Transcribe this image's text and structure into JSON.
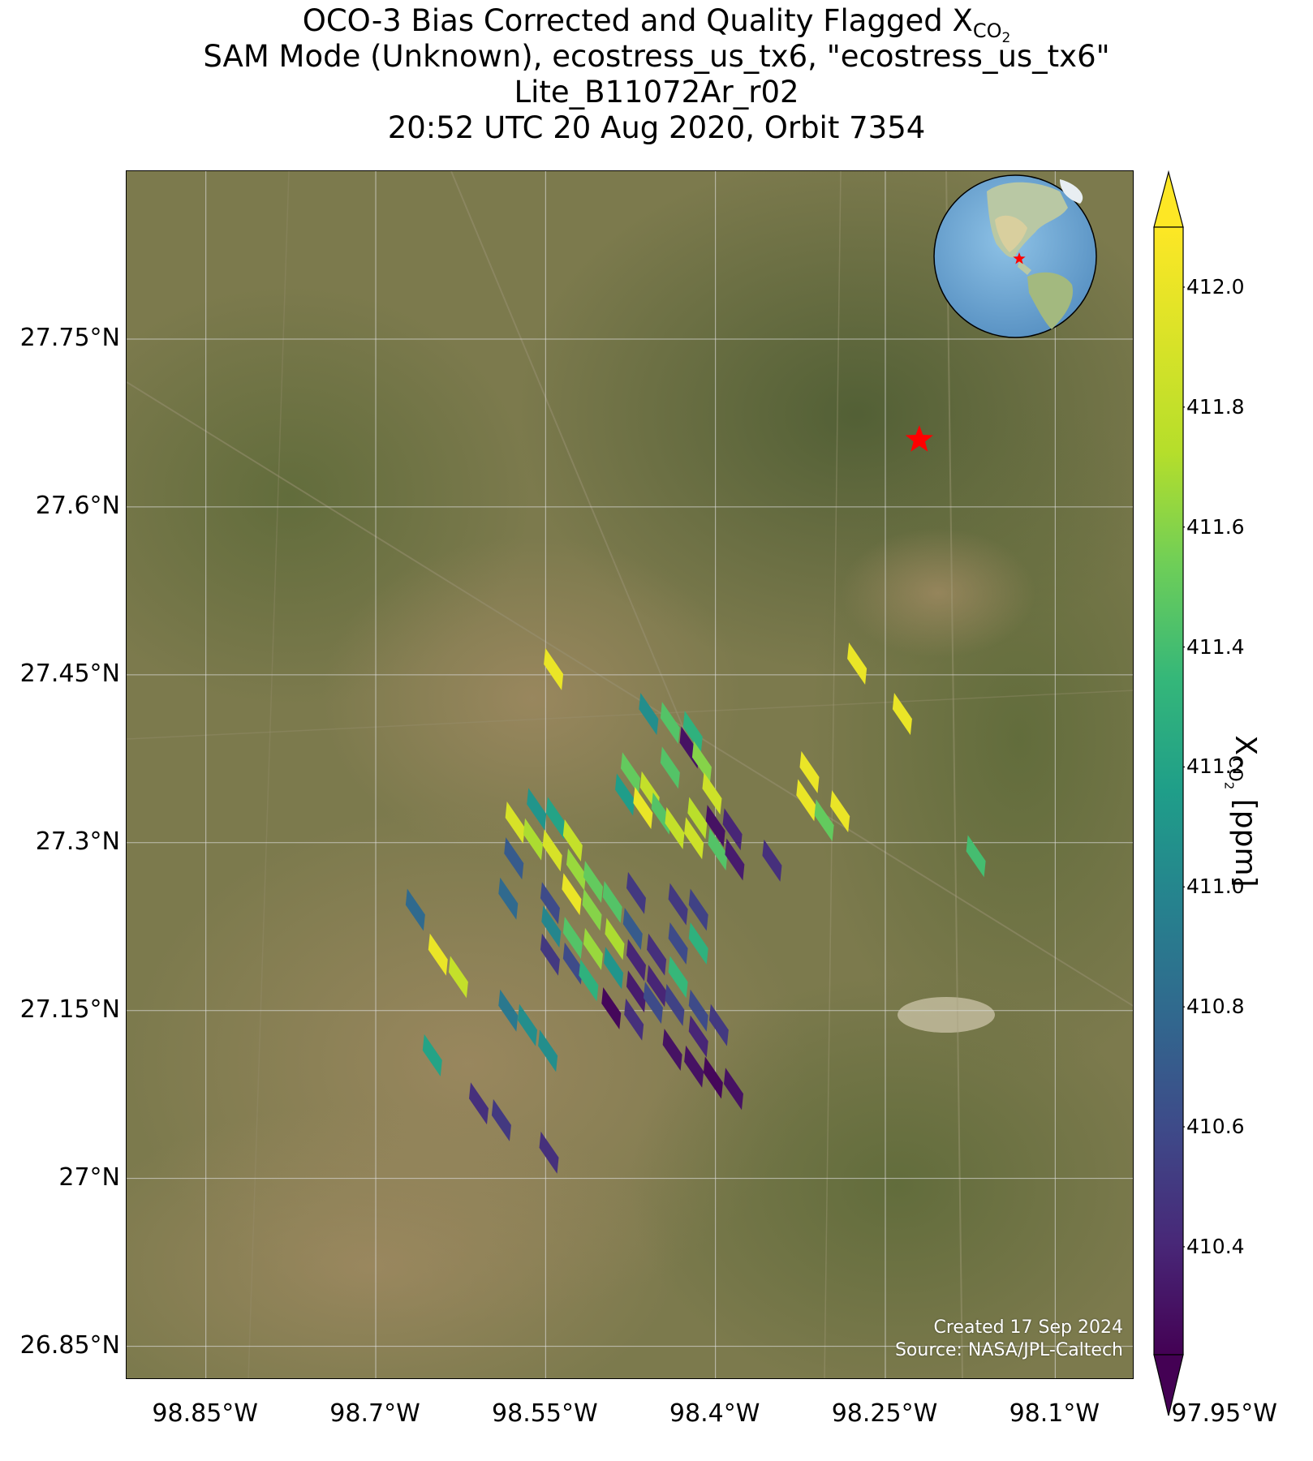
{
  "title": {
    "line1_prefix": "OCO-3 Bias Corrected and Quality Flagged X",
    "line1_sub": "CO",
    "line1_subsub": "2",
    "line2": "SAM Mode (Unknown), ecostress_us_tx6, \"ecostress_us_tx6\"",
    "line3": "Lite_B11072Ar_r02",
    "line4": "20:52 UTC 20 Aug 2020, Orbit 7354"
  },
  "map": {
    "lon_range": [
      -98.92,
      -98.03
    ],
    "lat_range": [
      26.82,
      27.9
    ],
    "lat_ticks": [
      "27.75°N",
      "27.6°N",
      "27.45°N",
      "27.3°N",
      "27.15°N",
      "27°N",
      "26.85°N"
    ],
    "lat_tick_values": [
      27.75,
      27.6,
      27.45,
      27.3,
      27.15,
      27.0,
      26.85
    ],
    "lon_ticks": [
      "98.85°W",
      "98.7°W",
      "98.55°W",
      "98.4°W",
      "98.25°W",
      "98.1°W",
      "97.95°W"
    ],
    "lon_tick_values": [
      -98.85,
      -98.7,
      -98.55,
      -98.4,
      -98.25,
      -98.1,
      -97.95
    ],
    "grid": true,
    "target_marker": {
      "lon": -98.22,
      "lat": 27.66,
      "symbol": "star",
      "color": "#ff0000"
    },
    "inset_globe": {
      "placement": "top-right",
      "marker_color": "#ff0000"
    },
    "credit_line1": "Created 17 Sep 2024",
    "credit_line2": "Source: NASA/JPL-Caltech"
  },
  "colorbar": {
    "colormap": "viridis",
    "vmin": 410.22,
    "vmax": 412.1,
    "ticks": [
      "412.0",
      "411.8",
      "411.6",
      "411.4",
      "411.2",
      "411.0",
      "410.8",
      "410.6",
      "410.4"
    ],
    "tick_values": [
      412.0,
      411.8,
      411.6,
      411.4,
      411.2,
      411.0,
      410.8,
      410.6,
      410.4
    ],
    "extend": "both",
    "label_prefix": "X",
    "label_sub": "CO",
    "label_subsub": "2",
    "label_suffix": " [ppm]"
  },
  "soundings": [
    {
      "lon": -98.543,
      "lat": 27.455,
      "xco2": 412.0
    },
    {
      "lon": -98.459,
      "lat": 27.415,
      "xco2": 411.05
    },
    {
      "lon": -98.44,
      "lat": 27.407,
      "xco2": 411.45
    },
    {
      "lon": -98.42,
      "lat": 27.399,
      "xco2": 411.3
    },
    {
      "lon": -98.423,
      "lat": 27.385,
      "xco2": 410.3
    },
    {
      "lon": -98.44,
      "lat": 27.367,
      "xco2": 411.45
    },
    {
      "lon": -98.412,
      "lat": 27.372,
      "xco2": 411.6
    },
    {
      "lon": -98.475,
      "lat": 27.362,
      "xco2": 411.5
    },
    {
      "lon": -98.458,
      "lat": 27.345,
      "xco2": 411.8
    },
    {
      "lon": -98.48,
      "lat": 27.343,
      "xco2": 411.15
    },
    {
      "lon": -98.464,
      "lat": 27.331,
      "xco2": 412.0
    },
    {
      "lon": -98.448,
      "lat": 27.326,
      "xco2": 411.45
    },
    {
      "lon": -98.403,
      "lat": 27.344,
      "xco2": 411.85
    },
    {
      "lon": -98.416,
      "lat": 27.322,
      "xco2": 411.75
    },
    {
      "lon": -98.436,
      "lat": 27.313,
      "xco2": 411.8
    },
    {
      "lon": -98.419,
      "lat": 27.304,
      "xco2": 411.85
    },
    {
      "lon": -98.4,
      "lat": 27.315,
      "xco2": 410.3
    },
    {
      "lon": -98.385,
      "lat": 27.312,
      "xco2": 410.4
    },
    {
      "lon": -98.398,
      "lat": 27.294,
      "xco2": 411.45
    },
    {
      "lon": -98.383,
      "lat": 27.285,
      "xco2": 410.35
    },
    {
      "lon": -98.577,
      "lat": 27.318,
      "xco2": 411.9
    },
    {
      "lon": -98.558,
      "lat": 27.33,
      "xco2": 411.1
    },
    {
      "lon": -98.541,
      "lat": 27.322,
      "xco2": 411.2
    },
    {
      "lon": -98.561,
      "lat": 27.303,
      "xco2": 411.7
    },
    {
      "lon": -98.544,
      "lat": 27.293,
      "xco2": 411.9
    },
    {
      "lon": -98.526,
      "lat": 27.302,
      "xco2": 411.8
    },
    {
      "lon": -98.578,
      "lat": 27.286,
      "xco2": 410.7
    },
    {
      "lon": -98.523,
      "lat": 27.276,
      "xco2": 411.65
    },
    {
      "lon": -98.508,
      "lat": 27.265,
      "xco2": 411.5
    },
    {
      "lon": -98.527,
      "lat": 27.254,
      "xco2": 412.0
    },
    {
      "lon": -98.546,
      "lat": 27.246,
      "xco2": 410.6
    },
    {
      "lon": -98.509,
      "lat": 27.24,
      "xco2": 411.6
    },
    {
      "lon": -98.491,
      "lat": 27.247,
      "xco2": 411.45
    },
    {
      "lon": -98.47,
      "lat": 27.255,
      "xco2": 410.5
    },
    {
      "lon": -98.545,
      "lat": 27.225,
      "xco2": 411.0
    },
    {
      "lon": -98.526,
      "lat": 27.215,
      "xco2": 411.45
    },
    {
      "lon": -98.508,
      "lat": 27.205,
      "xco2": 411.65
    },
    {
      "lon": -98.489,
      "lat": 27.214,
      "xco2": 411.7
    },
    {
      "lon": -98.473,
      "lat": 27.223,
      "xco2": 410.7
    },
    {
      "lon": -98.433,
      "lat": 27.245,
      "xco2": 410.5
    },
    {
      "lon": -98.415,
      "lat": 27.24,
      "xco2": 410.55
    },
    {
      "lon": -98.583,
      "lat": 27.25,
      "xco2": 410.8
    },
    {
      "lon": -98.546,
      "lat": 27.2,
      "xco2": 410.5
    },
    {
      "lon": -98.526,
      "lat": 27.192,
      "xco2": 410.6
    },
    {
      "lon": -98.512,
      "lat": 27.177,
      "xco2": 411.3
    },
    {
      "lon": -98.49,
      "lat": 27.188,
      "xco2": 411.1
    },
    {
      "lon": -98.47,
      "lat": 27.195,
      "xco2": 410.4
    },
    {
      "lon": -98.452,
      "lat": 27.2,
      "xco2": 410.45
    },
    {
      "lon": -98.433,
      "lat": 27.21,
      "xco2": 410.6
    },
    {
      "lon": -98.415,
      "lat": 27.21,
      "xco2": 411.3
    },
    {
      "lon": -98.433,
      "lat": 27.18,
      "xco2": 411.35
    },
    {
      "lon": -98.452,
      "lat": 27.172,
      "xco2": 410.4
    },
    {
      "lon": -98.47,
      "lat": 27.167,
      "xco2": 410.35
    },
    {
      "lon": -98.492,
      "lat": 27.152,
      "xco2": 410.25
    },
    {
      "lon": -98.472,
      "lat": 27.142,
      "xco2": 410.45
    },
    {
      "lon": -98.455,
      "lat": 27.157,
      "xco2": 410.6
    },
    {
      "lon": -98.436,
      "lat": 27.155,
      "xco2": 410.55
    },
    {
      "lon": -98.415,
      "lat": 27.15,
      "xco2": 410.6
    },
    {
      "lon": -98.415,
      "lat": 27.127,
      "xco2": 410.4
    },
    {
      "lon": -98.397,
      "lat": 27.137,
      "xco2": 410.5
    },
    {
      "lon": -98.438,
      "lat": 27.115,
      "xco2": 410.3
    },
    {
      "lon": -98.419,
      "lat": 27.1,
      "xco2": 410.3
    },
    {
      "lon": -98.402,
      "lat": 27.09,
      "xco2": 410.25
    },
    {
      "lon": -98.384,
      "lat": 27.08,
      "xco2": 410.3
    },
    {
      "lon": -98.645,
      "lat": 27.2,
      "xco2": 412.0
    },
    {
      "lon": -98.627,
      "lat": 27.18,
      "xco2": 411.8
    },
    {
      "lon": -98.665,
      "lat": 27.24,
      "xco2": 410.8
    },
    {
      "lon": -98.583,
      "lat": 27.15,
      "xco2": 410.9
    },
    {
      "lon": -98.566,
      "lat": 27.137,
      "xco2": 411.05
    },
    {
      "lon": -98.548,
      "lat": 27.114,
      "xco2": 411.05
    },
    {
      "lon": -98.65,
      "lat": 27.11,
      "xco2": 411.2
    },
    {
      "lon": -98.609,
      "lat": 27.067,
      "xco2": 410.45
    },
    {
      "lon": -98.589,
      "lat": 27.052,
      "xco2": 410.5
    },
    {
      "lon": -98.547,
      "lat": 27.023,
      "xco2": 410.45
    },
    {
      "lon": -98.275,
      "lat": 27.46,
      "xco2": 412.0
    },
    {
      "lon": -98.235,
      "lat": 27.415,
      "xco2": 412.0
    },
    {
      "lon": -98.317,
      "lat": 27.363,
      "xco2": 412.0
    },
    {
      "lon": -98.32,
      "lat": 27.338,
      "xco2": 412.0
    },
    {
      "lon": -98.29,
      "lat": 27.328,
      "xco2": 412.0
    },
    {
      "lon": -98.304,
      "lat": 27.32,
      "xco2": 411.5
    },
    {
      "lon": -98.17,
      "lat": 27.288,
      "xco2": 411.4
    },
    {
      "lon": -98.35,
      "lat": 27.284,
      "xco2": 410.45
    }
  ]
}
